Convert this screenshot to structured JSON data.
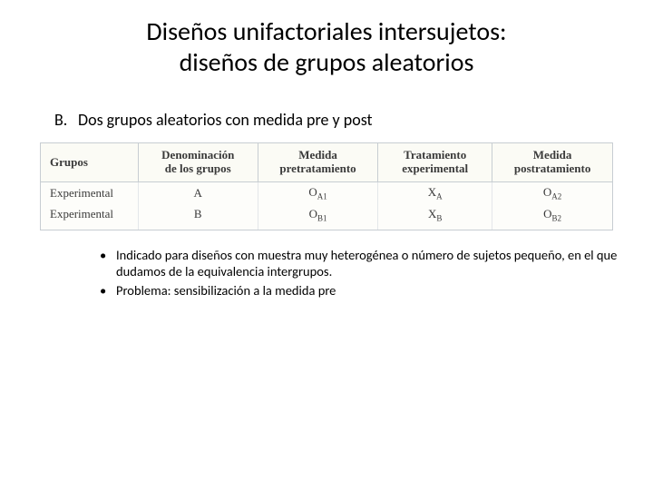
{
  "title_line1": "Diseños unifactoriales intersujetos:",
  "title_line2": "diseños de grupos aleatorios",
  "section": {
    "letter": "B.",
    "text": "Dos grupos aleatorios con medida pre y post"
  },
  "table": {
    "headers": {
      "grupos": "Grupos",
      "denom_l1": "Denominación",
      "denom_l2": "de los grupos",
      "pre_l1": "Medida",
      "pre_l2": "pretratamiento",
      "trat_l1": "Tratamiento",
      "trat_l2": "experimental",
      "post_l1": "Medida",
      "post_l2": "postratamiento"
    },
    "rows": [
      {
        "grupo": "Experimental",
        "denom": "A",
        "pre": "O",
        "pre_sub": "A1",
        "trat": "X",
        "trat_sub": "A",
        "post": "O",
        "post_sub": "A2"
      },
      {
        "grupo": "Experimental",
        "denom": "B",
        "pre": "O",
        "pre_sub": "B1",
        "trat": "X",
        "trat_sub": "B",
        "post": "O",
        "post_sub": "B2"
      }
    ]
  },
  "bullets": [
    "Indicado para diseños con muestra muy heterogénea o número de sujetos pequeño, en el que dudamos de la equivalencia intergrupos.",
    "Problema: sensibilización a la medida pre"
  ]
}
